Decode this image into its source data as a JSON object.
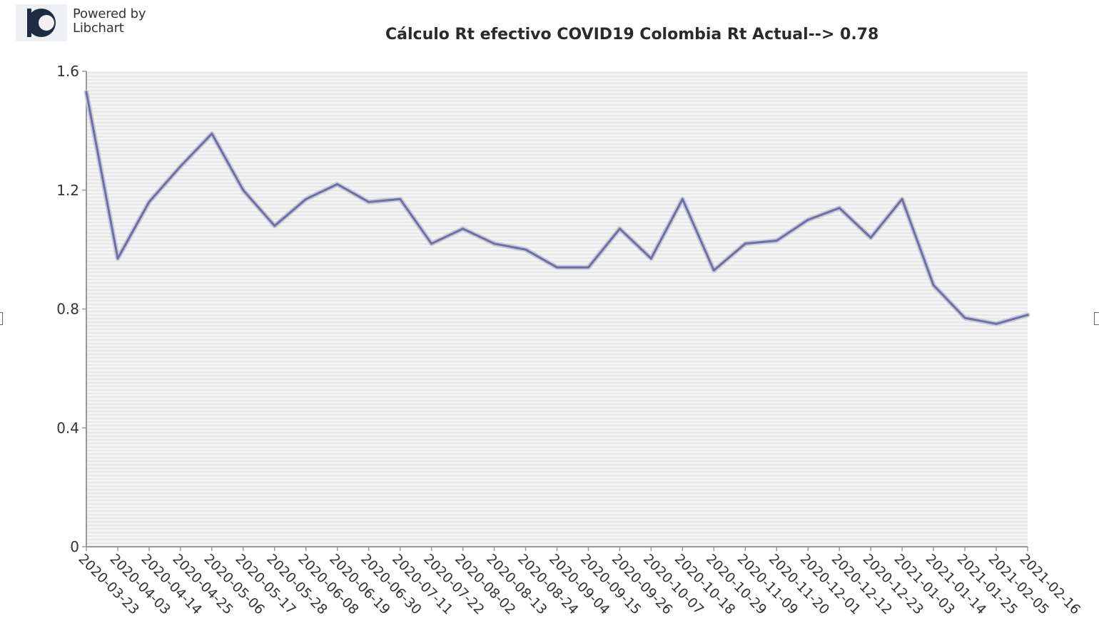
{
  "logo": {
    "line1": "Powered by",
    "line2": "Libchart",
    "icon": "libchart-logo-icon"
  },
  "chart_data": {
    "type": "line",
    "title": "Cálculo Rt efectivo COVID19 Colombia Rt Actual--> 0.78",
    "xlabel": "",
    "ylabel": "",
    "ylim": [
      0,
      1.6
    ],
    "yticks": [
      "0",
      "0.4",
      "0.8",
      "1.2",
      "1.6"
    ],
    "grid": true,
    "legend": "none",
    "line_color": "#6f6fa0",
    "categories": [
      "2020-03-23",
      "2020-04-03",
      "2020-04-14",
      "2020-04-25",
      "2020-05-06",
      "2020-05-17",
      "2020-05-28",
      "2020-06-08",
      "2020-06-19",
      "2020-06-30",
      "2020-07-11",
      "2020-07-22",
      "2020-08-02",
      "2020-08-13",
      "2020-08-24",
      "2020-09-04",
      "2020-09-15",
      "2020-09-26",
      "2020-10-07",
      "2020-10-18",
      "2020-10-29",
      "2020-11-09",
      "2020-11-20",
      "2020-12-01",
      "2020-12-12",
      "2020-12-23",
      "2021-01-03",
      "2021-01-14",
      "2021-01-25",
      "2021-02-05",
      "2021-02-16"
    ],
    "series": [
      {
        "values": [
          1.53,
          0.97,
          1.16,
          1.28,
          1.39,
          1.2,
          1.08,
          1.17,
          1.22,
          1.16,
          1.17,
          1.02,
          1.07,
          1.02,
          1.0,
          0.94,
          0.94,
          1.07,
          0.97,
          1.17,
          0.93,
          1.02,
          1.03,
          1.1,
          1.14,
          1.04,
          1.17,
          0.88,
          0.77,
          0.75,
          0.78
        ]
      }
    ]
  }
}
